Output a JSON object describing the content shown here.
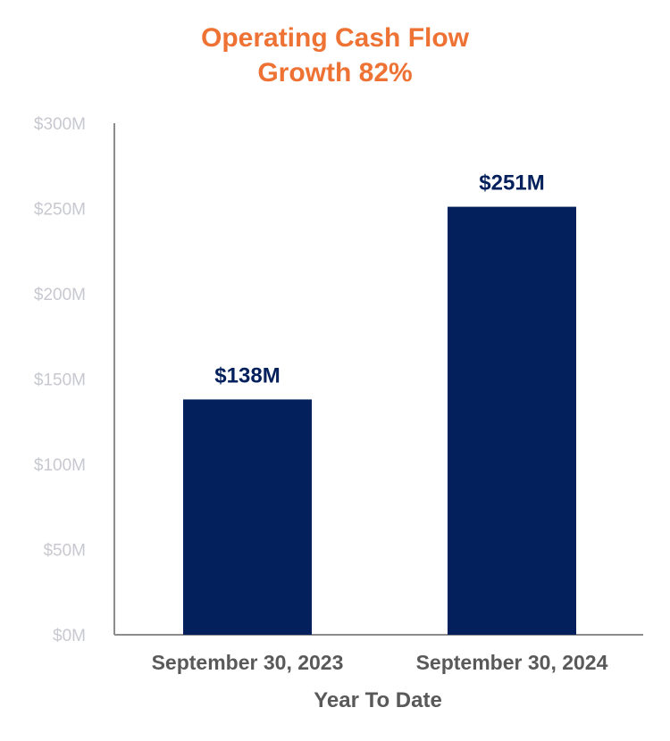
{
  "chart_data": {
    "type": "bar",
    "title_lines": [
      "Operating Cash Flow",
      "Growth 82%"
    ],
    "categories": [
      "September 30, 2023",
      "September 30, 2024"
    ],
    "values": [
      138,
      251
    ],
    "data_labels": [
      "$138M",
      "$251M"
    ],
    "xlabel": "Year To Date",
    "ylabel": "",
    "ylim": [
      0,
      300
    ],
    "yticks": [
      0,
      50,
      100,
      150,
      200,
      250,
      300
    ],
    "ytick_labels": [
      "$0M",
      "$50M",
      "$100M",
      "$150M",
      "$200M",
      "$250M",
      "$300M"
    ],
    "grid": false,
    "legend": "none"
  },
  "colors": {
    "title": "#ED7233",
    "bar": "#03205C",
    "data_label": "#03205C",
    "ytick": "#C8C9D0",
    "xtick": "#595959",
    "axis": "#8C8C8C"
  }
}
